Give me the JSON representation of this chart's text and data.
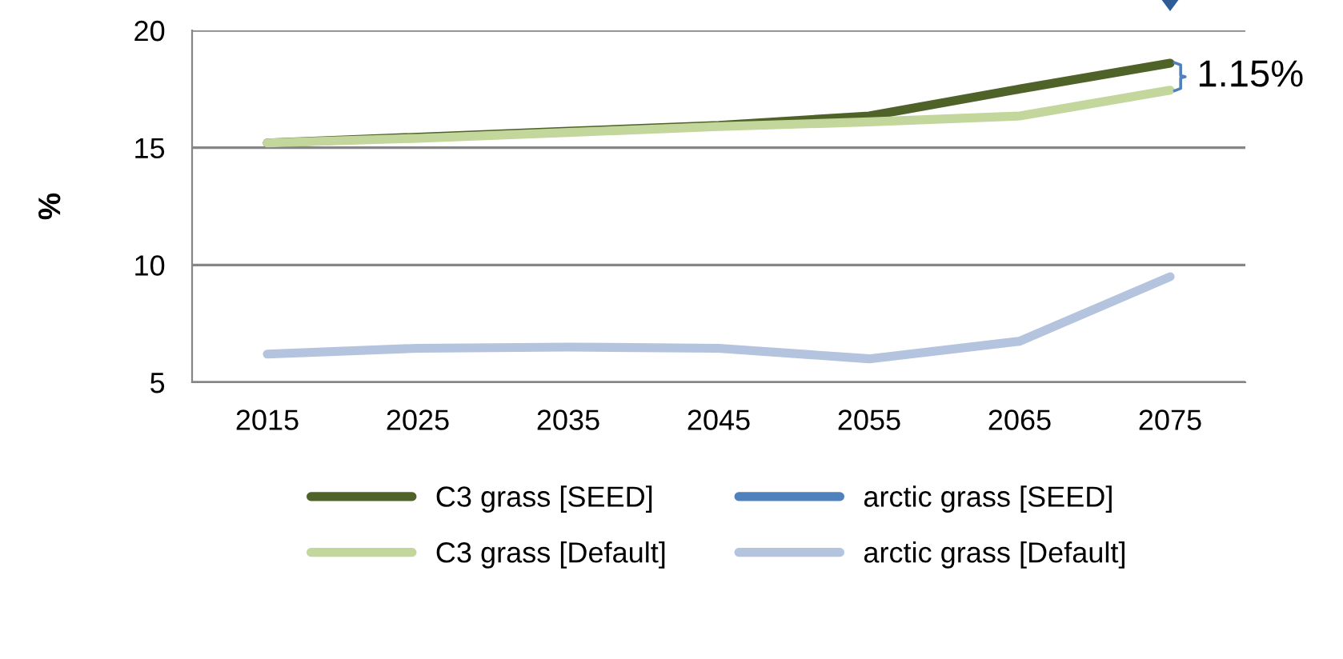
{
  "chart_data": {
    "type": "line",
    "ylabel": "%",
    "categories": [
      "2015",
      "2025",
      "2035",
      "2045",
      "2055",
      "2065",
      "2075"
    ],
    "series": [
      {
        "name": "C3 grass [SEED]",
        "color": "#4f6228",
        "values": [
          15.2,
          15.45,
          15.7,
          15.95,
          16.35,
          17.5,
          18.6
        ]
      },
      {
        "name": "arctic grass [SEED]",
        "color": "#4f81bd",
        "values": [
          null,
          null,
          null,
          null,
          null,
          null,
          null
        ]
      },
      {
        "name": "C3 grass [Default]",
        "color": "#c3d69b",
        "values": [
          15.2,
          15.4,
          15.65,
          15.9,
          16.1,
          16.35,
          17.45
        ]
      },
      {
        "name": "arctic grass [Default]",
        "color": "#b4c3de",
        "values": [
          6.2,
          6.45,
          6.5,
          6.45,
          6.0,
          6.75,
          9.5
        ]
      }
    ],
    "annotations": [
      "1.15%"
    ],
    "ylim": [
      5,
      20
    ],
    "yticks": [
      5,
      10,
      15,
      20
    ],
    "grid": "y",
    "legend": "bottom",
    "marker": "none",
    "line_style": "solid"
  }
}
